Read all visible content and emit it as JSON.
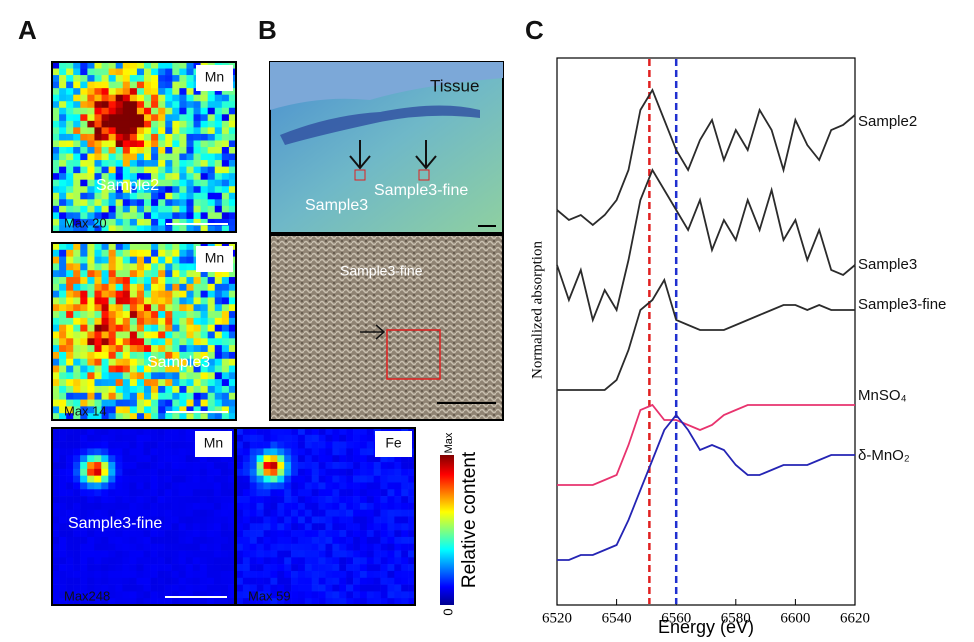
{
  "panels": {
    "A": {
      "label": "A",
      "maps": [
        {
          "element": "Mn",
          "sample": "Sample2",
          "max": "Max 20"
        },
        {
          "element": "Mn",
          "sample": "Sample3",
          "max": "Max 14"
        },
        {
          "element": "Mn",
          "sample": "Sample3-fine",
          "max": "Max248"
        },
        {
          "element": "Fe",
          "max": "Max 59"
        }
      ]
    },
    "B": {
      "label": "B",
      "top": {
        "tissue": "Tissue",
        "left": "Sample3",
        "right": "Sample3-fine"
      },
      "bottom": {
        "text": "Sample3-fine"
      }
    },
    "colorbar": {
      "max": "Max",
      "min": "0",
      "title": "Relative content"
    },
    "C": {
      "label": "C"
    }
  },
  "chart_data": {
    "type": "line",
    "xlabel": "Energy (eV)",
    "ylabel": "Normalized absorption",
    "x": [
      6520,
      6524,
      6528,
      6532,
      6536,
      6540,
      6544,
      6548,
      6552,
      6556,
      6560,
      6564,
      6568,
      6572,
      6576,
      6580,
      6584,
      6588,
      6592,
      6596,
      6600,
      6604,
      6608,
      6612,
      6616,
      6620
    ],
    "series": [
      {
        "name": "Sample2",
        "color": "#2b2b2b",
        "values": [
          7.9,
          7.7,
          7.8,
          7.6,
          7.8,
          8.1,
          8.7,
          9.9,
          10.3,
          9.7,
          9.1,
          8.7,
          9.3,
          9.7,
          8.9,
          9.5,
          9.1,
          9.9,
          9.5,
          8.7,
          9.7,
          9.2,
          8.9,
          9.5,
          9.6,
          9.8
        ]
      },
      {
        "name": "Sample3",
        "color": "#2b2b2b",
        "values": [
          6.8,
          6.1,
          6.7,
          5.7,
          6.3,
          5.9,
          6.9,
          8.1,
          8.7,
          8.3,
          7.9,
          7.5,
          8.1,
          7.1,
          7.7,
          7.3,
          8.1,
          7.5,
          8.3,
          7.3,
          7.7,
          6.9,
          7.5,
          6.7,
          6.6,
          6.8
        ]
      },
      {
        "name": "Sample3-fine",
        "color": "#2b2b2b",
        "values": [
          4.3,
          4.3,
          4.3,
          4.3,
          4.3,
          4.5,
          5.1,
          5.9,
          6.1,
          6.5,
          5.7,
          5.6,
          5.5,
          5.5,
          5.5,
          5.6,
          5.7,
          5.8,
          5.9,
          6.0,
          6.0,
          5.9,
          6.0,
          5.9,
          5.9,
          5.9
        ]
      },
      {
        "name": "MnSO₄",
        "color": "#e8336e",
        "values": [
          2.4,
          2.4,
          2.4,
          2.4,
          2.5,
          2.6,
          3.2,
          3.9,
          4.0,
          3.7,
          3.7,
          3.6,
          3.5,
          3.6,
          3.8,
          3.9,
          4.0,
          4.0,
          4.0,
          4.0,
          4.0,
          4.0,
          4.0,
          4.0,
          4.0,
          4.0
        ]
      },
      {
        "name": "δ-MnO₂",
        "color": "#2424b4",
        "values": [
          0.9,
          0.9,
          1.0,
          1.0,
          1.1,
          1.2,
          1.7,
          2.3,
          2.9,
          3.5,
          3.8,
          3.5,
          3.1,
          3.2,
          3.1,
          2.8,
          2.6,
          2.6,
          2.7,
          2.8,
          2.8,
          2.8,
          2.9,
          3.0,
          3.0,
          3.0
        ]
      }
    ],
    "reference_lines": [
      {
        "x": 6551,
        "color": "#e02020"
      },
      {
        "x": 6560,
        "color": "#2030d0"
      }
    ],
    "xlim": [
      6520,
      6620
    ],
    "xticks": [
      6520,
      6540,
      6560,
      6580,
      6600,
      6620
    ],
    "ylim": [
      0,
      11
    ]
  }
}
